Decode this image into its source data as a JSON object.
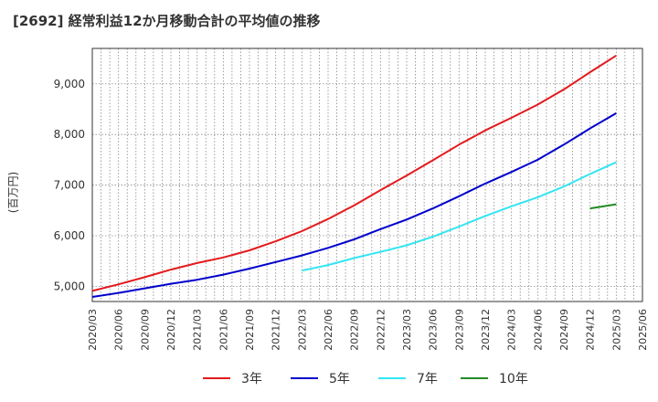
{
  "chart_data": {
    "type": "line",
    "title": "[2692]  経常利益12か月移動合計の平均値の推移",
    "ylabel": "(百万円)",
    "xlabel": "",
    "ylim": [
      4700,
      9700
    ],
    "yticks": [
      5000,
      6000,
      7000,
      8000,
      9000
    ],
    "ytick_labels": [
      "5,000",
      "6,000",
      "7,000",
      "8,000",
      "9,000"
    ],
    "xticks": [
      "2020/03",
      "2020/06",
      "2020/09",
      "2020/12",
      "2021/03",
      "2021/06",
      "2021/09",
      "2021/12",
      "2022/03",
      "2022/06",
      "2022/09",
      "2022/12",
      "2023/03",
      "2023/06",
      "2023/09",
      "2023/12",
      "2024/03",
      "2024/06",
      "2024/09",
      "2024/12",
      "2025/03",
      "2025/06"
    ],
    "grid": true,
    "legend_position": "bottom",
    "series": [
      {
        "name": "3年",
        "color": "#e31a1c",
        "x": [
          "2020/03",
          "2020/06",
          "2020/09",
          "2020/12",
          "2021/03",
          "2021/06",
          "2021/09",
          "2021/12",
          "2022/03",
          "2022/06",
          "2022/09",
          "2022/12",
          "2023/03",
          "2023/06",
          "2023/09",
          "2023/12",
          "2024/03",
          "2024/06",
          "2024/09",
          "2024/12",
          "2025/03"
        ],
        "values": [
          4910,
          5040,
          5180,
          5330,
          5460,
          5570,
          5710,
          5890,
          6090,
          6330,
          6600,
          6900,
          7190,
          7490,
          7800,
          8080,
          8330,
          8590,
          8890,
          9230,
          9560
        ]
      },
      {
        "name": "5年",
        "color": "#0000cc",
        "x": [
          "2020/03",
          "2020/06",
          "2020/09",
          "2020/12",
          "2021/03",
          "2021/06",
          "2021/09",
          "2021/12",
          "2022/03",
          "2022/06",
          "2022/09",
          "2022/12",
          "2023/03",
          "2023/06",
          "2023/09",
          "2023/12",
          "2024/03",
          "2024/06",
          "2024/09",
          "2024/12",
          "2025/03"
        ],
        "values": [
          4790,
          4870,
          4960,
          5050,
          5130,
          5230,
          5350,
          5480,
          5610,
          5760,
          5930,
          6130,
          6320,
          6540,
          6780,
          7030,
          7260,
          7500,
          7800,
          8120,
          8420
        ]
      },
      {
        "name": "7年",
        "color": "#33e5f2",
        "x": [
          "2022/03",
          "2022/06",
          "2022/09",
          "2022/12",
          "2023/03",
          "2023/06",
          "2023/09",
          "2023/12",
          "2024/03",
          "2024/06",
          "2024/09",
          "2024/12",
          "2025/03"
        ],
        "values": [
          5310,
          5420,
          5560,
          5680,
          5810,
          5980,
          6180,
          6390,
          6580,
          6760,
          6970,
          7220,
          7450
        ]
      },
      {
        "name": "10年",
        "color": "#228b22",
        "x": [
          "2024/12",
          "2025/03"
        ],
        "values": [
          6540,
          6620
        ]
      }
    ]
  }
}
